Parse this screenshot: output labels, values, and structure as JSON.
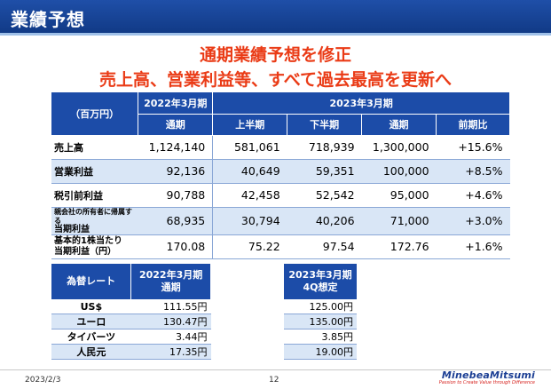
{
  "header": {
    "title": "業績予想"
  },
  "headline": {
    "line1": "通期業績予想を修正",
    "line2": "売上高、営業利益等、すべて過去最高を更新へ"
  },
  "main_table": {
    "unit": "（百万円）",
    "period_2022": "2022年3月期",
    "period_2023": "2023年3月期",
    "col_full_year_2022": "通期",
    "col_h1": "上半期",
    "col_h2": "下半期",
    "col_full_year_2023": "通期",
    "col_yoy": "前期比",
    "rows": [
      {
        "label": "売上高",
        "fy2022": "1,124,140",
        "h1": "581,061",
        "h2": "718,939",
        "fy2023": "1,300,000",
        "yoy": "+15.6%"
      },
      {
        "label": "営業利益",
        "fy2022": "92,136",
        "h1": "40,649",
        "h2": "59,351",
        "fy2023": "100,000",
        "yoy": "+8.5%"
      },
      {
        "label": "税引前利益",
        "fy2022": "90,788",
        "h1": "42,458",
        "h2": "52,542",
        "fy2023": "95,000",
        "yoy": "+4.6%"
      },
      {
        "label_small": "親会社の所有者に帰属する",
        "label": "当期利益",
        "fy2022": "68,935",
        "h1": "30,794",
        "h2": "40,206",
        "fy2023": "71,000",
        "yoy": "+3.0%"
      },
      {
        "label_line1": "基本的1株当たり",
        "label": "当期利益（円）",
        "fy2022": "170.08",
        "h1": "75.22",
        "h2": "97.54",
        "fy2023": "172.76",
        "yoy": "+1.6%"
      }
    ]
  },
  "fx_table": {
    "header_label": "為替レート",
    "header_2022_line1": "2022年3月期",
    "header_2022_line2": "通期",
    "header_2023_line1": "2023年3月期",
    "header_2023_line2": "4Q想定",
    "rows": [
      {
        "currency": "US$",
        "fy2022": "111.55円",
        "q4_2023": "125.00円"
      },
      {
        "currency": "ユーロ",
        "fy2022": "130.47円",
        "q4_2023": "135.00円"
      },
      {
        "currency": "タイバーツ",
        "fy2022": "3.44円",
        "q4_2023": "3.85円"
      },
      {
        "currency": "人民元",
        "fy2022": "17.35円",
        "q4_2023": "19.00円"
      }
    ]
  },
  "footer": {
    "date": "2023/2/3",
    "page": "12",
    "logo_name": "MinebeaMitsumi",
    "logo_tagline": "Passion to Create Value through Difference"
  },
  "colors": {
    "header_blue": "#1c4ca8",
    "headline_red": "#ea3b16",
    "row_shade": "#d9e6f6"
  }
}
